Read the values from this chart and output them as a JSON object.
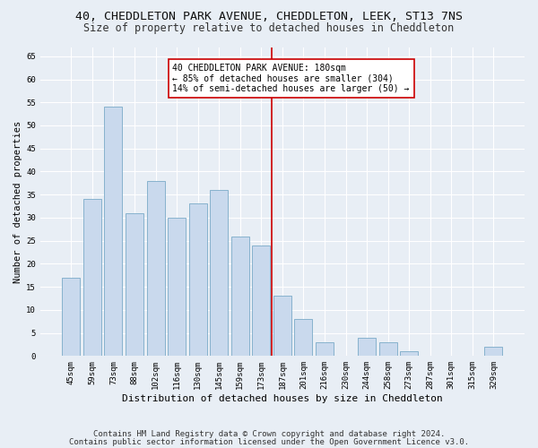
{
  "title1": "40, CHEDDLETON PARK AVENUE, CHEDDLETON, LEEK, ST13 7NS",
  "title2": "Size of property relative to detached houses in Cheddleton",
  "xlabel": "Distribution of detached houses by size in Cheddleton",
  "ylabel": "Number of detached properties",
  "categories": [
    "45sqm",
    "59sqm",
    "73sqm",
    "88sqm",
    "102sqm",
    "116sqm",
    "130sqm",
    "145sqm",
    "159sqm",
    "173sqm",
    "187sqm",
    "201sqm",
    "216sqm",
    "230sqm",
    "244sqm",
    "258sqm",
    "273sqm",
    "287sqm",
    "301sqm",
    "315sqm",
    "329sqm"
  ],
  "values": [
    17,
    34,
    54,
    31,
    38,
    30,
    33,
    36,
    26,
    24,
    13,
    8,
    3,
    0,
    4,
    3,
    1,
    0,
    0,
    0,
    2
  ],
  "bar_color": "#c9d9ed",
  "bar_edge_color": "#7aaac8",
  "vline_color": "#cc0000",
  "annotation_box_color": "#ffffff",
  "annotation_box_edge": "#cc0000",
  "marker_label_line1": "40 CHEDDLETON PARK AVENUE: 180sqm",
  "marker_label_line2": "← 85% of detached houses are smaller (304)",
  "marker_label_line3": "14% of semi-detached houses are larger (50) →",
  "ylim": [
    0,
    67
  ],
  "yticks": [
    0,
    5,
    10,
    15,
    20,
    25,
    30,
    35,
    40,
    45,
    50,
    55,
    60,
    65
  ],
  "bg_color": "#e8eef5",
  "grid_color": "#ffffff",
  "footer1": "Contains HM Land Registry data © Crown copyright and database right 2024.",
  "footer2": "Contains public sector information licensed under the Open Government Licence v3.0.",
  "title1_fontsize": 9.5,
  "title2_fontsize": 8.5,
  "xlabel_fontsize": 8,
  "ylabel_fontsize": 7.5,
  "tick_fontsize": 6.5,
  "annot_fontsize": 7,
  "footer_fontsize": 6.5
}
